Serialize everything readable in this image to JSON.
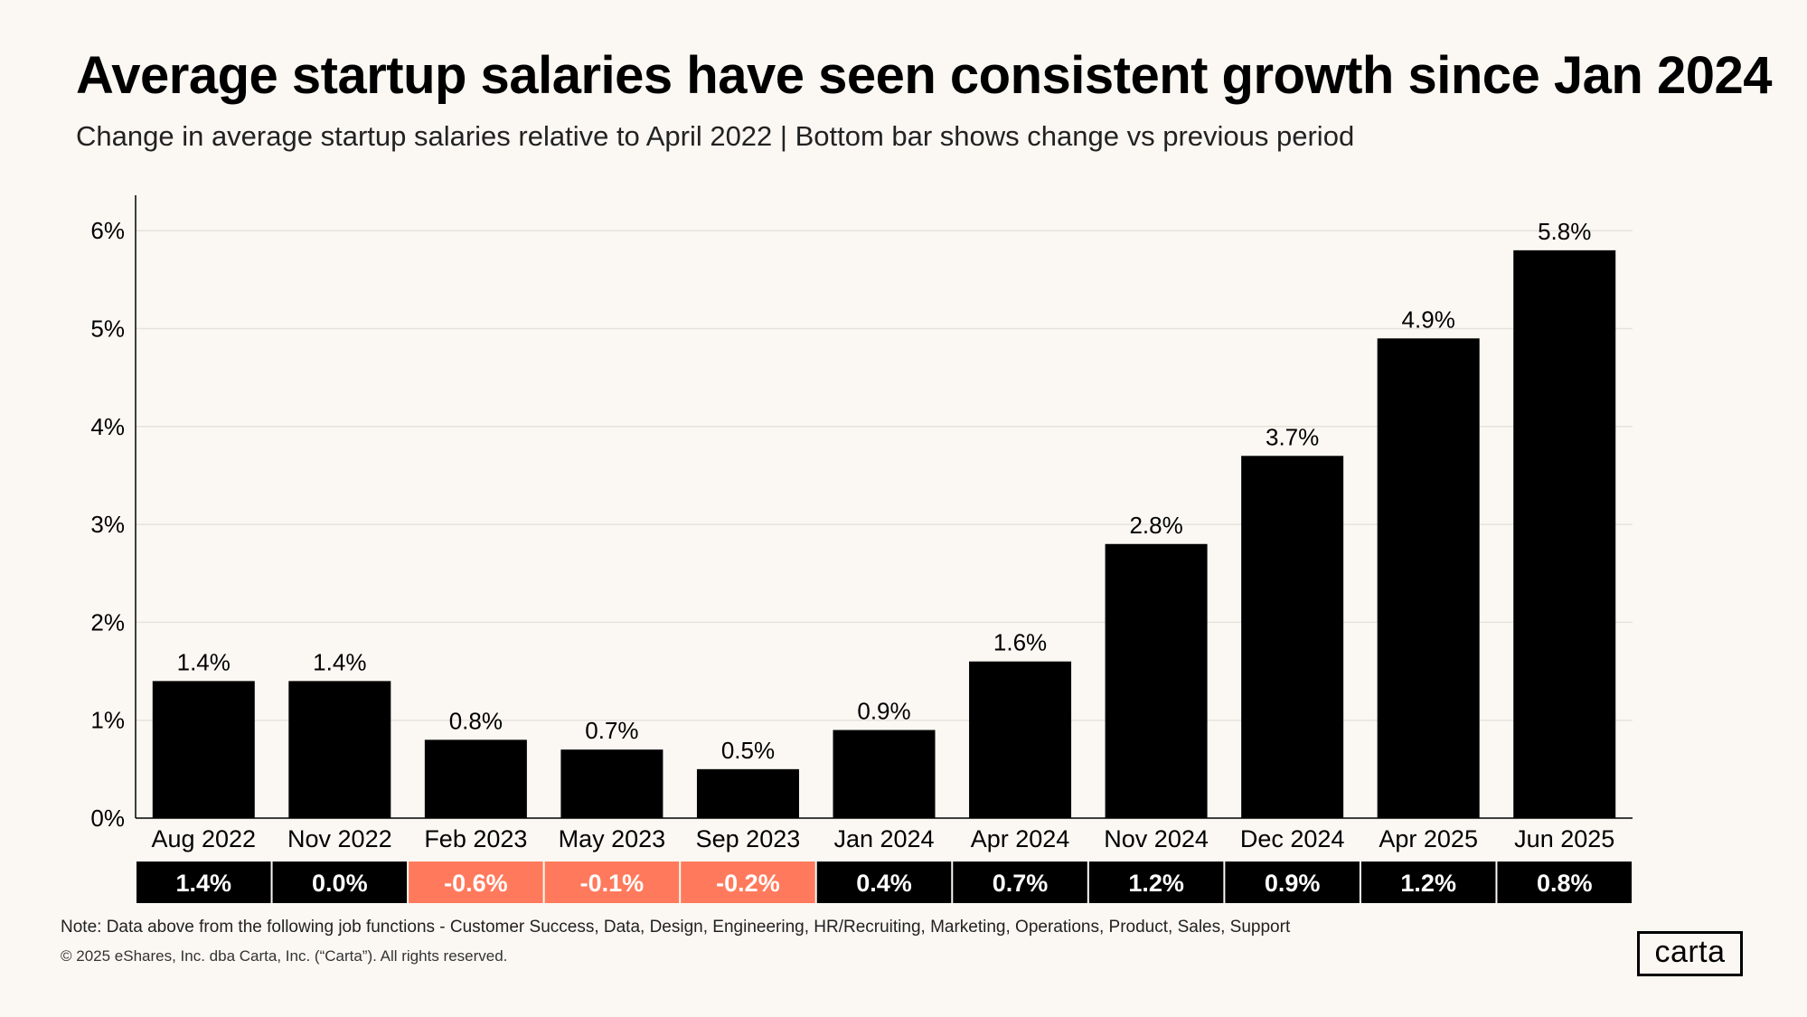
{
  "title": "Average startup salaries have seen consistent growth since Jan 2024",
  "subtitle": "Change in average startup salaries relative to April 2022 | Bottom bar shows change vs previous period",
  "note": "Note:  Data above from the following job functions - Customer Success, Data, Design, Engineering, HR/Recruiting, Marketing, Operations, Product,  Sales, Support",
  "copyright": "© 2025 eShares, Inc. dba Carta, Inc. (“Carta”). All rights reserved.",
  "logo_text": "carta",
  "colors": {
    "background": "#fbf8f3",
    "bar": "#000000",
    "positive_change": "#000000",
    "negative_change": "#ff7a5c",
    "gridline": "#e6e2dc"
  },
  "chart_data": {
    "type": "bar",
    "categories": [
      "Aug 2022",
      "Nov 2022",
      "Feb 2023",
      "May 2023",
      "Sep 2023",
      "Jan 2024",
      "Apr 2024",
      "Nov 2024",
      "Dec 2024",
      "Apr 2025",
      "Jun 2025"
    ],
    "values": [
      1.4,
      1.4,
      0.8,
      0.7,
      0.5,
      0.9,
      1.6,
      2.8,
      3.7,
      4.9,
      5.8
    ],
    "value_labels": [
      "1.4%",
      "1.4%",
      "0.8%",
      "0.7%",
      "0.5%",
      "0.9%",
      "1.6%",
      "2.8%",
      "3.7%",
      "4.9%",
      "5.8%"
    ],
    "change_vs_previous": [
      1.4,
      0.0,
      -0.6,
      -0.1,
      -0.2,
      0.4,
      0.7,
      1.2,
      0.9,
      1.2,
      0.8
    ],
    "change_labels": [
      "1.4%",
      "0.0%",
      "-0.6%",
      "-0.1%",
      "-0.2%",
      "0.4%",
      "0.7%",
      "1.2%",
      "0.9%",
      "1.2%",
      "0.8%"
    ],
    "y_ticks": [
      0,
      1,
      2,
      3,
      4,
      5,
      6
    ],
    "y_tick_labels": [
      "0%",
      "1%",
      "2%",
      "3%",
      "4%",
      "5%",
      "6%"
    ],
    "ylim": [
      0,
      6.4
    ],
    "grid": true,
    "legend": "none"
  }
}
